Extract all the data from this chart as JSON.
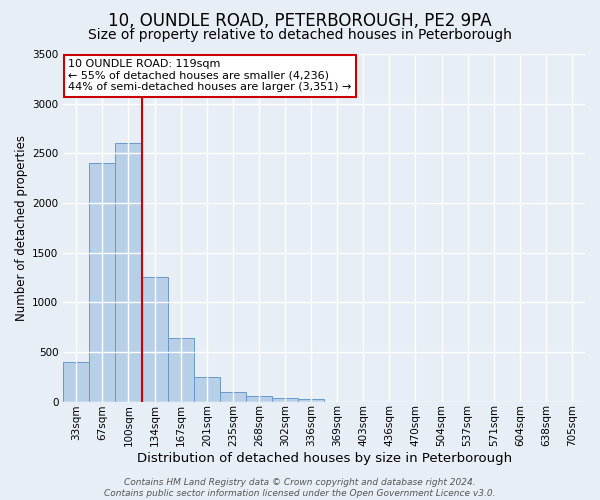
{
  "title": "10, OUNDLE ROAD, PETERBOROUGH, PE2 9PA",
  "subtitle": "Size of property relative to detached houses in Peterborough",
  "xlabel": "Distribution of detached houses by size in Peterborough",
  "ylabel": "Number of detached properties",
  "bar_values": [
    400,
    2400,
    2600,
    1250,
    640,
    250,
    100,
    55,
    40,
    30,
    0,
    0,
    0,
    0,
    0,
    0,
    0,
    0,
    0,
    0
  ],
  "bar_labels": [
    "33sqm",
    "67sqm",
    "100sqm",
    "134sqm",
    "167sqm",
    "201sqm",
    "235sqm",
    "268sqm",
    "302sqm",
    "336sqm",
    "369sqm",
    "403sqm",
    "436sqm",
    "470sqm",
    "504sqm",
    "537sqm",
    "571sqm",
    "604sqm",
    "638sqm",
    "705sqm"
  ],
  "bar_color": "#b8cfe8",
  "bar_edge_color": "#6699cc",
  "bg_color": "#e8eef5",
  "grid_color": "#ffffff",
  "vline_x": 2.5,
  "vline_color": "#cc0000",
  "annotation_title": "10 OUNDLE ROAD: 119sqm",
  "annotation_line1": "← 55% of detached houses are smaller (4,236)",
  "annotation_line2": "44% of semi-detached houses are larger (3,351) →",
  "annotation_box_color": "#ffffff",
  "annotation_edge_color": "#cc0000",
  "ylim": [
    0,
    3500
  ],
  "yticks": [
    0,
    500,
    1000,
    1500,
    2000,
    2500,
    3000,
    3500
  ],
  "footer_line1": "Contains HM Land Registry data © Crown copyright and database right 2024.",
  "footer_line2": "Contains public sector information licensed under the Open Government Licence v3.0.",
  "title_fontsize": 12,
  "subtitle_fontsize": 10,
  "xlabel_fontsize": 9.5,
  "ylabel_fontsize": 8.5,
  "tick_fontsize": 7.5,
  "footer_fontsize": 6.5,
  "annotation_fontsize": 8
}
